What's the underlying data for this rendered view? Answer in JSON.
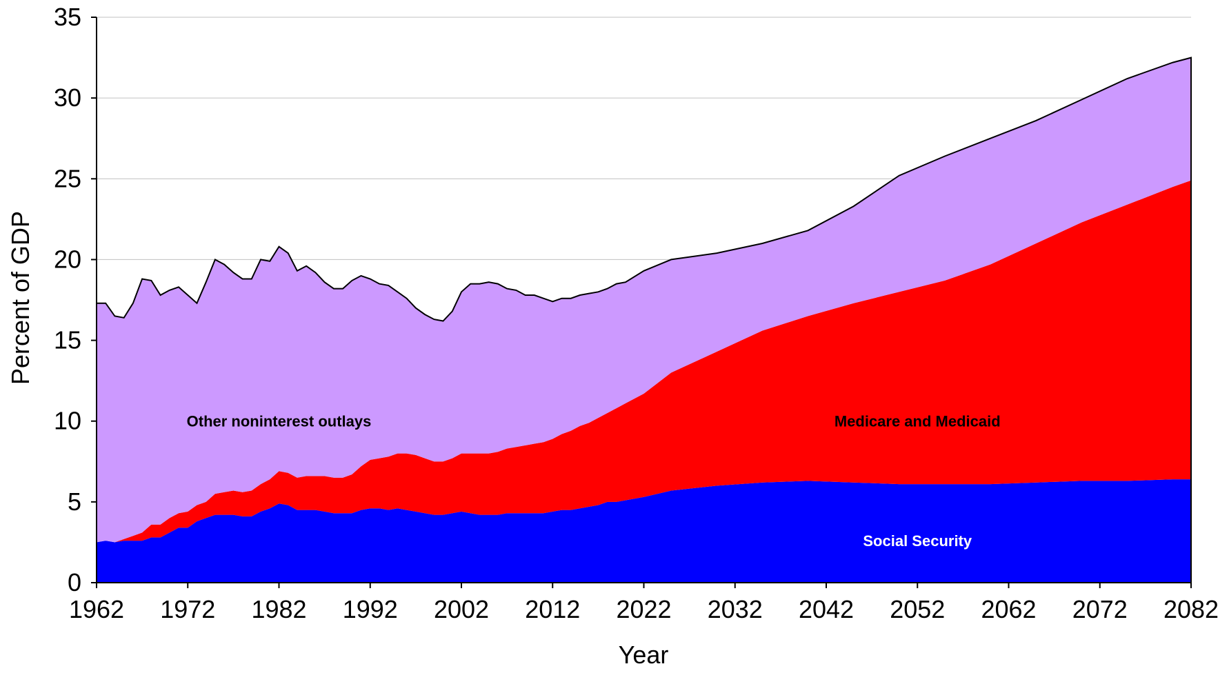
{
  "chart_data": {
    "type": "area",
    "stacked": true,
    "title": "",
    "xlabel": "Year",
    "ylabel": "Percent of GDP",
    "xlim": [
      1962,
      2082
    ],
    "ylim": [
      0,
      35
    ],
    "x_ticks": [
      1962,
      1972,
      1982,
      1992,
      2002,
      2012,
      2022,
      2032,
      2042,
      2052,
      2062,
      2072,
      2082
    ],
    "y_ticks": [
      0,
      5,
      10,
      15,
      20,
      25,
      30,
      35
    ],
    "grid": "horizontal",
    "legend": "none",
    "x": [
      1962,
      1963,
      1964,
      1965,
      1966,
      1967,
      1968,
      1969,
      1970,
      1971,
      1972,
      1973,
      1974,
      1975,
      1976,
      1977,
      1978,
      1979,
      1980,
      1981,
      1982,
      1983,
      1984,
      1985,
      1986,
      1987,
      1988,
      1989,
      1990,
      1991,
      1992,
      1993,
      1994,
      1995,
      1996,
      1997,
      1998,
      1999,
      2000,
      2001,
      2002,
      2003,
      2004,
      2005,
      2006,
      2007,
      2008,
      2009,
      2010,
      2011,
      2012,
      2013,
      2014,
      2015,
      2016,
      2017,
      2018,
      2019,
      2020,
      2022,
      2025,
      2030,
      2035,
      2040,
      2045,
      2050,
      2055,
      2060,
      2065,
      2070,
      2075,
      2080,
      2082
    ],
    "series": [
      {
        "name": "Social Security",
        "color": "#0000ff",
        "label_color": "#ffffff",
        "label_at": [
          2052,
          2.6
        ],
        "values": [
          2.5,
          2.6,
          2.5,
          2.6,
          2.6,
          2.6,
          2.8,
          2.8,
          3.1,
          3.4,
          3.4,
          3.8,
          4.0,
          4.2,
          4.2,
          4.2,
          4.1,
          4.1,
          4.4,
          4.6,
          4.9,
          4.8,
          4.5,
          4.5,
          4.5,
          4.4,
          4.3,
          4.3,
          4.3,
          4.5,
          4.6,
          4.6,
          4.5,
          4.6,
          4.5,
          4.4,
          4.3,
          4.2,
          4.2,
          4.3,
          4.4,
          4.3,
          4.2,
          4.2,
          4.2,
          4.3,
          4.3,
          4.3,
          4.3,
          4.3,
          4.4,
          4.5,
          4.5,
          4.6,
          4.7,
          4.8,
          5.0,
          5.0,
          5.1,
          5.3,
          5.7,
          6.0,
          6.2,
          6.3,
          6.2,
          6.1,
          6.1,
          6.1,
          6.2,
          6.3,
          6.3,
          6.4,
          6.4
        ]
      },
      {
        "name": "Medicare and Medicaid",
        "color": "#ff0000",
        "label_color": "#000000",
        "label_at": [
          2052,
          10.0
        ],
        "values": [
          0.0,
          0.0,
          0.0,
          0.1,
          0.3,
          0.5,
          0.8,
          0.8,
          0.9,
          0.9,
          1.0,
          1.0,
          1.0,
          1.3,
          1.4,
          1.5,
          1.5,
          1.6,
          1.7,
          1.8,
          2.0,
          2.0,
          2.0,
          2.1,
          2.1,
          2.2,
          2.2,
          2.2,
          2.4,
          2.7,
          3.0,
          3.1,
          3.3,
          3.4,
          3.5,
          3.5,
          3.4,
          3.3,
          3.3,
          3.4,
          3.6,
          3.7,
          3.8,
          3.8,
          3.9,
          4.0,
          4.1,
          4.2,
          4.3,
          4.4,
          4.5,
          4.7,
          4.9,
          5.1,
          5.2,
          5.4,
          5.5,
          5.8,
          6.0,
          6.4,
          7.3,
          8.3,
          9.4,
          10.2,
          11.1,
          11.9,
          12.6,
          13.6,
          14.8,
          16.0,
          17.1,
          18.1,
          18.5
        ]
      },
      {
        "name": "Other noninterest outlays",
        "color": "#cc99ff",
        "label_color": "#000000",
        "label_at": [
          1982,
          10.0
        ],
        "values": [
          14.8,
          14.7,
          14.0,
          13.7,
          14.4,
          15.7,
          15.1,
          14.2,
          14.1,
          14.0,
          13.4,
          12.5,
          13.6,
          14.5,
          14.1,
          13.5,
          13.2,
          13.1,
          13.9,
          13.5,
          13.9,
          13.6,
          12.8,
          13.0,
          12.6,
          12.0,
          11.7,
          11.7,
          12.0,
          11.8,
          11.2,
          10.8,
          10.6,
          10.0,
          9.6,
          9.1,
          8.9,
          8.8,
          8.7,
          9.1,
          10.0,
          10.5,
          10.5,
          10.6,
          10.4,
          9.9,
          9.7,
          9.3,
          9.2,
          8.9,
          8.5,
          8.4,
          8.2,
          8.1,
          8.0,
          7.8,
          7.7,
          7.7,
          7.5,
          7.6,
          7.0,
          6.1,
          5.4,
          5.3,
          6.0,
          7.2,
          7.7,
          7.8,
          7.6,
          7.6,
          7.8,
          7.7,
          7.6
        ]
      }
    ]
  }
}
